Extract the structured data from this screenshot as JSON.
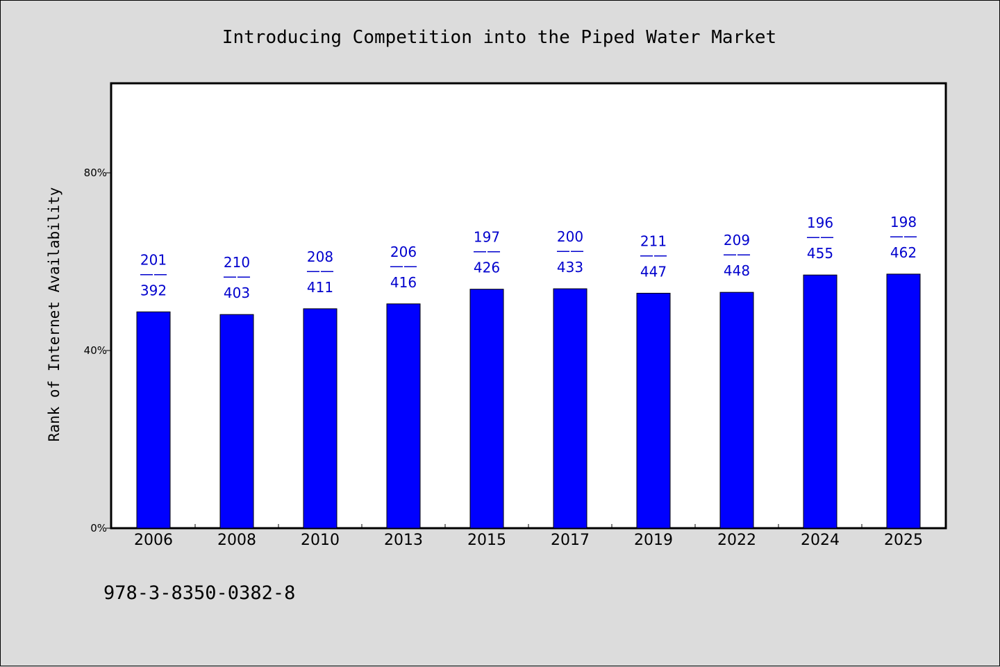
{
  "chart_data": {
    "type": "bar",
    "title": "Introducing Competition into the Piped Water Market",
    "ylabel": "Rank of Internet Availability",
    "xlabel": "",
    "categories": [
      "2006",
      "2008",
      "2010",
      "2013",
      "2015",
      "2017",
      "2019",
      "2022",
      "2024",
      "2025"
    ],
    "values": [
      48.7,
      48.1,
      49.4,
      50.5,
      53.8,
      53.9,
      52.9,
      53.1,
      57.0,
      57.2
    ],
    "labels_top": [
      "201",
      "210",
      "208",
      "206",
      "197",
      "200",
      "211",
      "209",
      "196",
      "198"
    ],
    "labels_separator": "——",
    "labels_bottom": [
      "392",
      "403",
      "411",
      "416",
      "426",
      "433",
      "447",
      "448",
      "455",
      "462"
    ],
    "ylim": [
      0,
      100
    ],
    "yticks": [
      0,
      40,
      80
    ],
    "ytick_labels": [
      "0%",
      "40%",
      "80%"
    ],
    "grid": false,
    "legend": "none",
    "bar_color": "#0000ff",
    "label_color": "#0000cd"
  },
  "footnote": "978-3-8350-0382-8"
}
